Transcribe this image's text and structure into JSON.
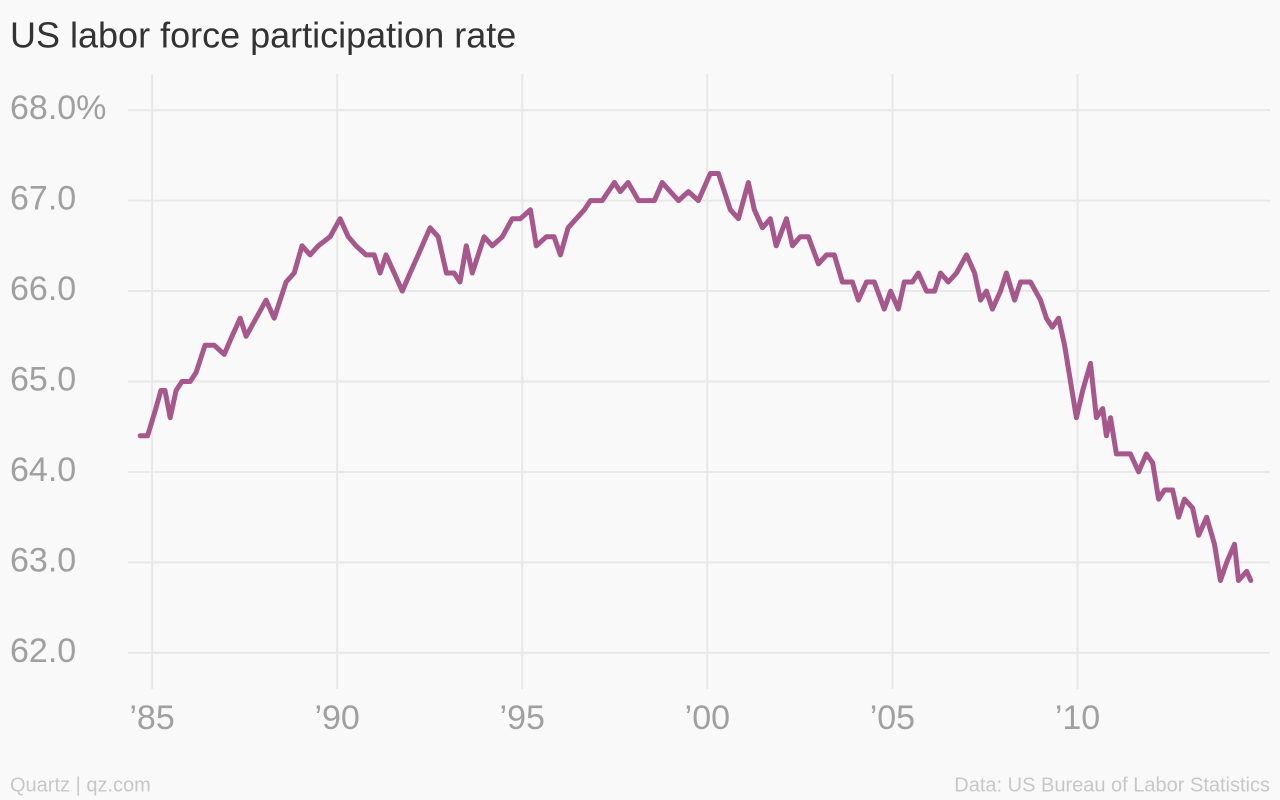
{
  "chart_data": {
    "type": "line",
    "title": "US labor force participation rate",
    "credit": "Quartz | qz.com",
    "source": "Data: US Bureau of Labor Statistics",
    "xlim": [
      1984.35,
      2015.2
    ],
    "ylim": [
      61.6,
      68.4
    ],
    "grid": true,
    "xticks": [
      {
        "value": 1985,
        "label": "’85"
      },
      {
        "value": 1990,
        "label": "’90"
      },
      {
        "value": 1995,
        "label": "’95"
      },
      {
        "value": 2000,
        "label": "’00"
      },
      {
        "value": 2005,
        "label": "’05"
      },
      {
        "value": 2010,
        "label": "’10"
      }
    ],
    "yticks": [
      {
        "value": 62,
        "label": "62.0"
      },
      {
        "value": 63,
        "label": "63.0"
      },
      {
        "value": 64,
        "label": "64.0"
      },
      {
        "value": 65,
        "label": "65.0"
      },
      {
        "value": 66,
        "label": "66.0"
      },
      {
        "value": 67,
        "label": "67.0"
      },
      {
        "value": 68,
        "label": "68.0%"
      }
    ],
    "x": [
      1984.68,
      1984.88,
      1985.1,
      1985.24,
      1985.35,
      1985.49,
      1985.65,
      1985.81,
      1986.03,
      1986.19,
      1986.43,
      1986.68,
      1986.95,
      1987.16,
      1987.38,
      1987.54,
      1987.81,
      1988.08,
      1988.3,
      1988.62,
      1988.84,
      1989.05,
      1989.27,
      1989.49,
      1989.81,
      1990.08,
      1990.3,
      1990.51,
      1990.78,
      1991.0,
      1991.16,
      1991.32,
      1991.54,
      1991.76,
      1991.97,
      1992.19,
      1992.51,
      1992.73,
      1992.95,
      1993.16,
      1993.32,
      1993.49,
      1993.65,
      1993.97,
      1994.19,
      1994.46,
      1994.73,
      1994.95,
      1995.22,
      1995.38,
      1995.65,
      1995.86,
      1996.03,
      1996.24,
      1996.46,
      1996.68,
      1996.84,
      1997.16,
      1997.49,
      1997.65,
      1997.86,
      1998.14,
      1998.57,
      1998.78,
      1999.0,
      1999.22,
      1999.49,
      1999.76,
      2000.08,
      2000.3,
      2000.46,
      2000.62,
      2000.84,
      2001.11,
      2001.27,
      2001.49,
      2001.7,
      2001.86,
      2002.14,
      2002.3,
      2002.51,
      2002.73,
      2003.0,
      2003.22,
      2003.43,
      2003.65,
      2003.92,
      2004.08,
      2004.3,
      2004.51,
      2004.78,
      2004.95,
      2005.16,
      2005.32,
      2005.54,
      2005.7,
      2005.92,
      2006.14,
      2006.3,
      2006.51,
      2006.73,
      2007.0,
      2007.22,
      2007.38,
      2007.54,
      2007.7,
      2007.92,
      2008.08,
      2008.3,
      2008.46,
      2008.73,
      2009.0,
      2009.16,
      2009.32,
      2009.49,
      2009.65,
      2009.81,
      2009.97,
      2010.14,
      2010.35,
      2010.51,
      2010.68,
      2010.78,
      2010.89,
      2011.05,
      2011.43,
      2011.65,
      2011.86,
      2012.03,
      2012.19,
      2012.35,
      2012.57,
      2012.73,
      2012.89,
      2013.11,
      2013.27,
      2013.49,
      2013.7,
      2013.86,
      2014.03,
      2014.24,
      2014.35,
      2014.57,
      2014.68
    ],
    "series": [
      {
        "name": "Participation rate",
        "color": "#a6578b",
        "values": [
          64.4,
          64.4,
          64.7,
          64.9,
          64.9,
          64.6,
          64.9,
          65.0,
          65.0,
          65.1,
          65.4,
          65.4,
          65.3,
          65.5,
          65.7,
          65.5,
          65.7,
          65.9,
          65.7,
          66.1,
          66.2,
          66.5,
          66.4,
          66.5,
          66.6,
          66.8,
          66.6,
          66.5,
          66.4,
          66.4,
          66.2,
          66.4,
          66.2,
          66.0,
          66.2,
          66.4,
          66.7,
          66.6,
          66.2,
          66.2,
          66.1,
          66.5,
          66.2,
          66.6,
          66.5,
          66.6,
          66.8,
          66.8,
          66.9,
          66.5,
          66.6,
          66.6,
          66.4,
          66.7,
          66.8,
          66.9,
          67.0,
          67.0,
          67.2,
          67.1,
          67.2,
          67.0,
          67.0,
          67.2,
          67.1,
          67.0,
          67.1,
          67.0,
          67.3,
          67.3,
          67.1,
          66.9,
          66.8,
          67.2,
          66.9,
          66.7,
          66.8,
          66.5,
          66.8,
          66.5,
          66.6,
          66.6,
          66.3,
          66.4,
          66.4,
          66.1,
          66.1,
          65.9,
          66.1,
          66.1,
          65.8,
          66.0,
          65.8,
          66.1,
          66.1,
          66.2,
          66.0,
          66.0,
          66.2,
          66.1,
          66.2,
          66.4,
          66.2,
          65.9,
          66.0,
          65.8,
          66.0,
          66.2,
          65.9,
          66.1,
          66.1,
          65.9,
          65.7,
          65.6,
          65.7,
          65.4,
          65.0,
          64.6,
          64.9,
          65.2,
          64.6,
          64.7,
          64.4,
          64.6,
          64.2,
          64.2,
          64.0,
          64.2,
          64.1,
          63.7,
          63.8,
          63.8,
          63.5,
          63.7,
          63.6,
          63.3,
          63.5,
          63.2,
          62.8,
          63.0,
          63.2,
          62.8,
          62.9,
          62.8
        ]
      }
    ]
  }
}
